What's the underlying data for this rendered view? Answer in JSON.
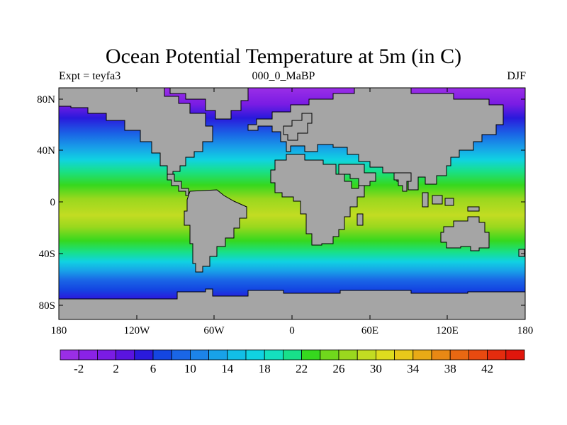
{
  "title": "Ocean Potential Temperature at 5m (in C)",
  "subtitle_left": "Expt = teyfa3",
  "subtitle_center": "000_0_MaBP",
  "subtitle_right": "DJF",
  "land_color": "#a5a5a5",
  "x_ticks": [
    "180",
    "120W",
    "60W",
    "0",
    "60E",
    "120E",
    "180"
  ],
  "y_ticks": [
    "80N",
    "40N",
    "0",
    "40S",
    "80S"
  ],
  "colorbar": {
    "colors": [
      "#9a2ee6",
      "#8a22e6",
      "#7a1ce4",
      "#5a14e0",
      "#2a1adc",
      "#1446e2",
      "#1a66e6",
      "#1c84e8",
      "#18a2e8",
      "#12bee6",
      "#10d2e2",
      "#14e0be",
      "#18e08a",
      "#36d81e",
      "#70d81c",
      "#9ad81e",
      "#c2dc22",
      "#dedc1e",
      "#e8c81a",
      "#e8aa16",
      "#e88814",
      "#e86812",
      "#e84a10",
      "#e42c0e",
      "#e0160c"
    ],
    "labels": [
      "-2",
      "2",
      "6",
      "10",
      "14",
      "18",
      "22",
      "26",
      "30",
      "34",
      "38",
      "42"
    ]
  }
}
